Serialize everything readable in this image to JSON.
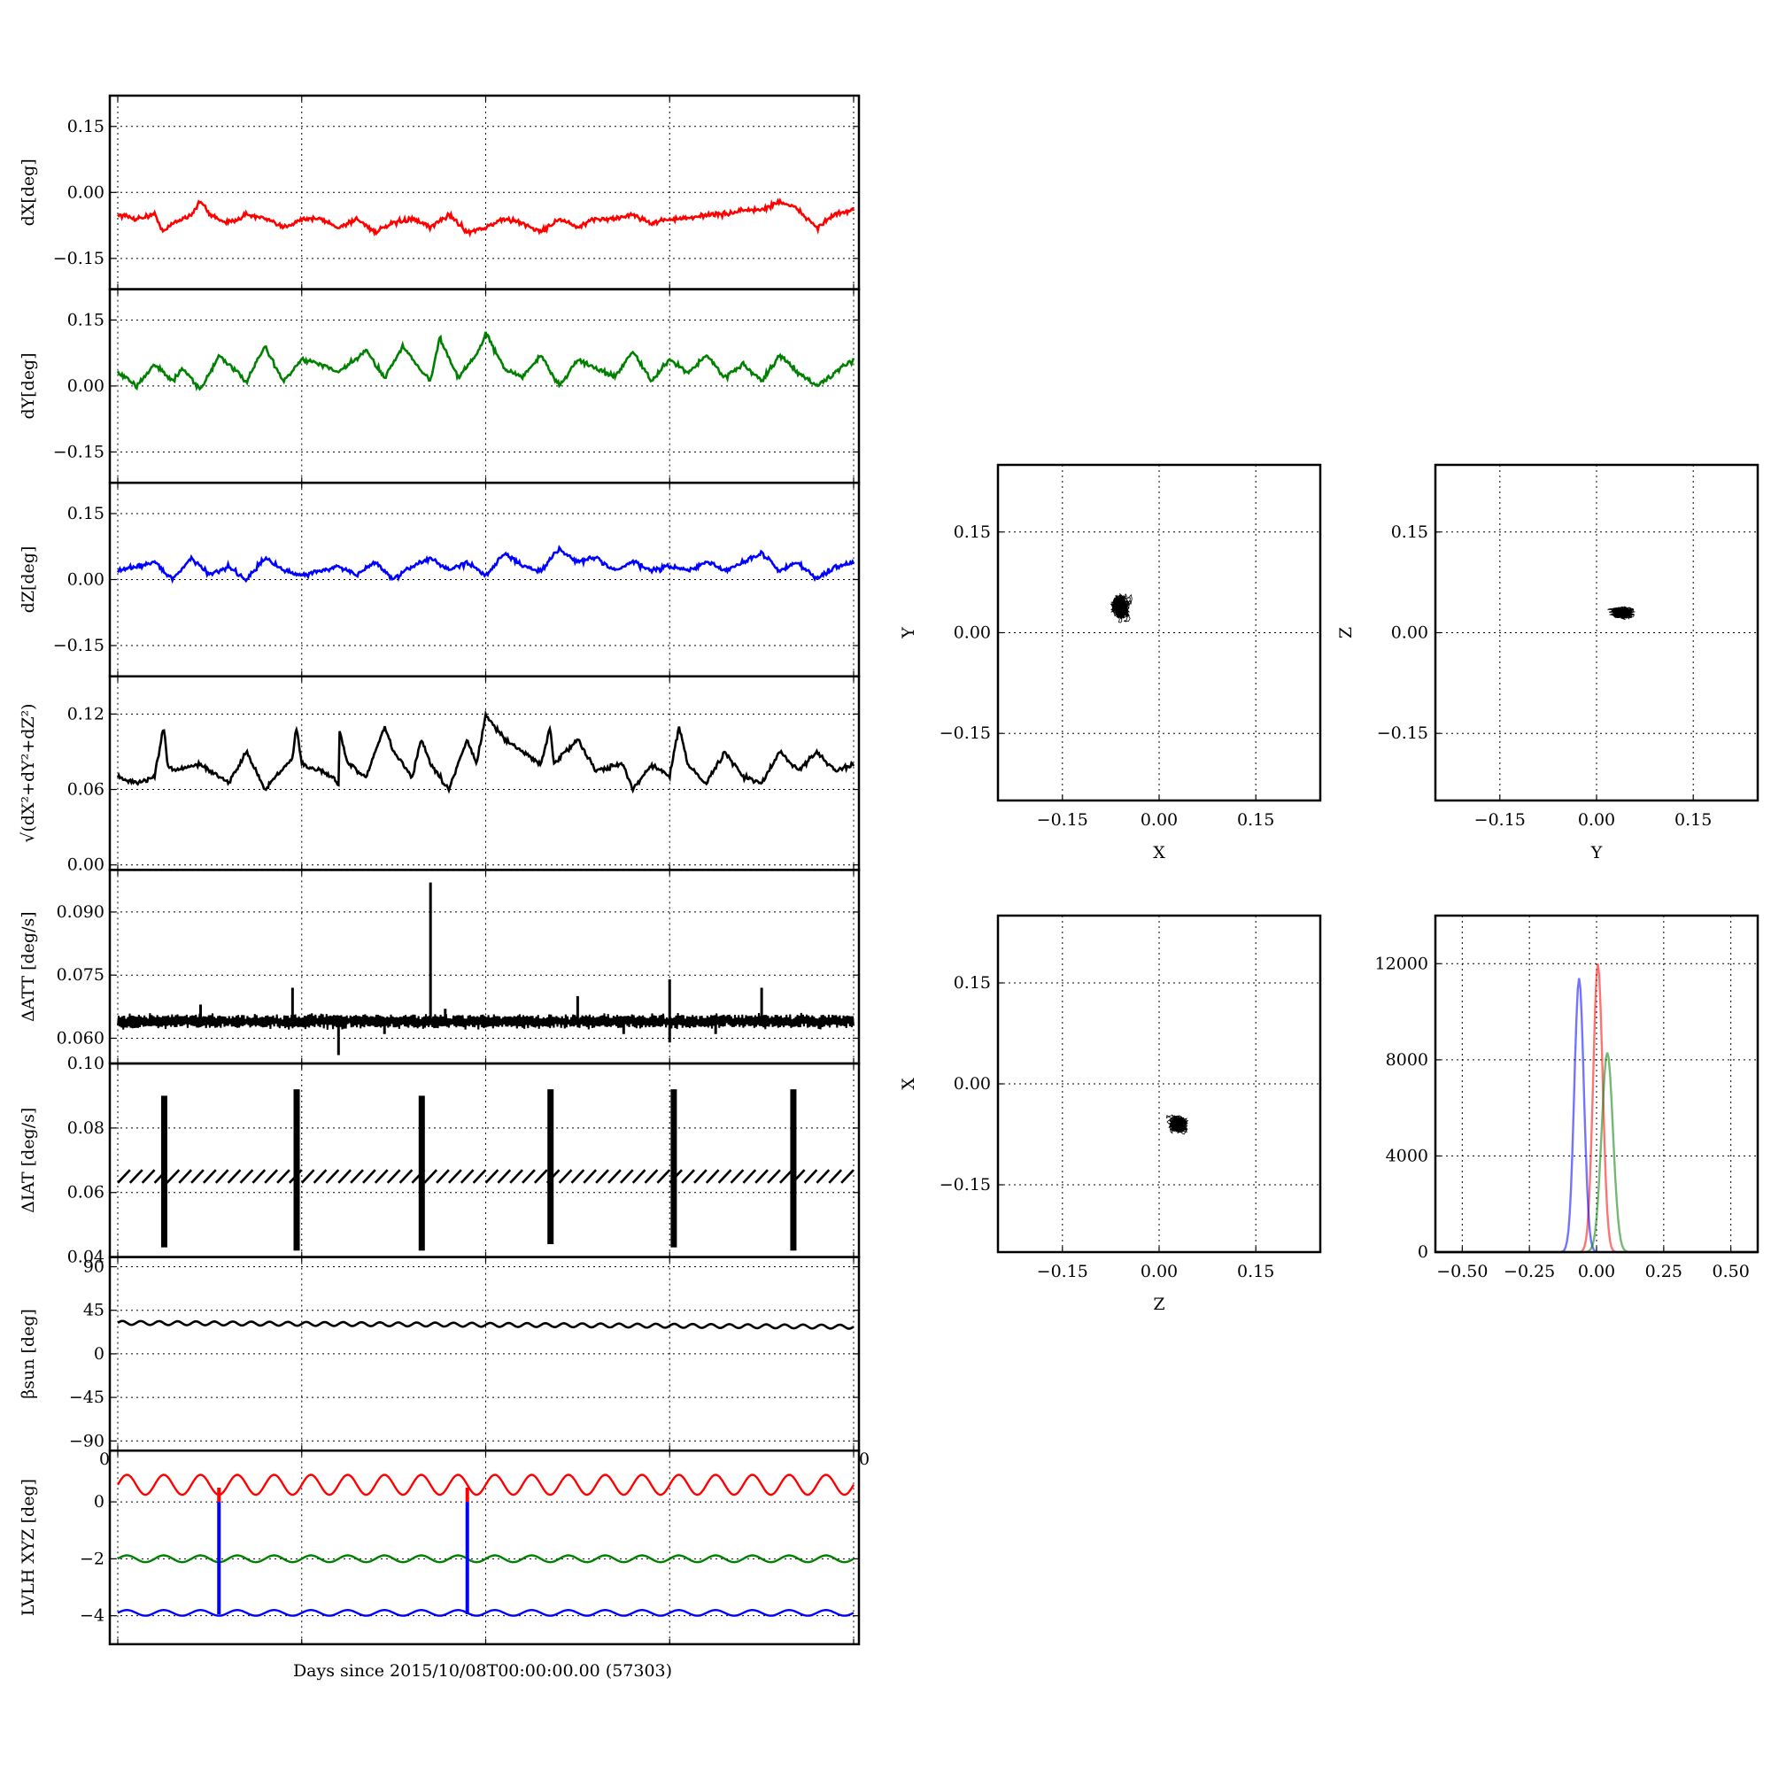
{
  "figure": {
    "xlabel": "Days since 2015/10/08T00:00:00.00 (57303)"
  },
  "chart_data": [
    {
      "id": "dX",
      "type": "line",
      "ylabel": "dX[deg]",
      "ylim": [
        -0.22,
        0.22
      ],
      "yticks": [
        "0.15",
        "0.00",
        "−0.15"
      ],
      "ytick_values": [
        0.15,
        0.0,
        -0.15
      ],
      "xlim": [
        0,
        4
      ],
      "color": "#ff0000",
      "series": [
        {
          "x": [
            0.0,
            0.1,
            0.2,
            0.25,
            0.3,
            0.4,
            0.45,
            0.5,
            0.6,
            0.7,
            0.8,
            0.9,
            1.0,
            1.1,
            1.2,
            1.3,
            1.4,
            1.5,
            1.6,
            1.7,
            1.8,
            1.9,
            2.0,
            2.1,
            2.2,
            2.3,
            2.4,
            2.5,
            2.6,
            2.7,
            2.8,
            2.9,
            3.0,
            3.1,
            3.2,
            3.3,
            3.4,
            3.5,
            3.6,
            3.7,
            3.8,
            3.9,
            4.0
          ],
          "y": [
            -0.05,
            -0.06,
            -0.05,
            -0.09,
            -0.07,
            -0.05,
            -0.02,
            -0.05,
            -0.07,
            -0.05,
            -0.06,
            -0.08,
            -0.06,
            -0.06,
            -0.08,
            -0.06,
            -0.09,
            -0.07,
            -0.06,
            -0.08,
            -0.05,
            -0.09,
            -0.08,
            -0.06,
            -0.07,
            -0.09,
            -0.06,
            -0.08,
            -0.06,
            -0.06,
            -0.05,
            -0.07,
            -0.06,
            -0.06,
            -0.05,
            -0.05,
            -0.04,
            -0.04,
            -0.02,
            -0.04,
            -0.08,
            -0.05,
            -0.04
          ]
        }
      ]
    },
    {
      "id": "dY",
      "type": "line",
      "ylabel": "dY[deg]",
      "ylim": [
        -0.22,
        0.22
      ],
      "yticks": [
        "0.15",
        "0.00",
        "−0.15"
      ],
      "ytick_values": [
        0.15,
        0.0,
        -0.15
      ],
      "xlim": [
        0,
        4
      ],
      "color": "#008000",
      "series": [
        {
          "x": [
            0.0,
            0.1,
            0.2,
            0.3,
            0.35,
            0.45,
            0.55,
            0.7,
            0.8,
            0.9,
            1.0,
            1.1,
            1.2,
            1.35,
            1.45,
            1.55,
            1.7,
            1.75,
            1.85,
            1.95,
            2.0,
            2.1,
            2.2,
            2.3,
            2.4,
            2.5,
            2.6,
            2.7,
            2.8,
            2.9,
            3.0,
            3.1,
            3.2,
            3.3,
            3.4,
            3.5,
            3.6,
            3.7,
            3.8,
            3.9,
            4.0
          ],
          "y": [
            0.03,
            0.0,
            0.05,
            0.01,
            0.04,
            -0.01,
            0.07,
            0.01,
            0.09,
            0.01,
            0.06,
            0.05,
            0.03,
            0.08,
            0.02,
            0.09,
            0.01,
            0.11,
            0.02,
            0.07,
            0.12,
            0.04,
            0.02,
            0.07,
            0.0,
            0.06,
            0.04,
            0.02,
            0.08,
            0.01,
            0.06,
            0.03,
            0.07,
            0.02,
            0.05,
            0.01,
            0.07,
            0.03,
            0.0,
            0.03,
            0.06
          ]
        }
      ]
    },
    {
      "id": "dZ",
      "type": "line",
      "ylabel": "dZ[deg]",
      "ylim": [
        -0.22,
        0.22
      ],
      "yticks": [
        "0.15",
        "0.00",
        "−0.15"
      ],
      "ytick_values": [
        0.15,
        0.0,
        -0.15
      ],
      "xlim": [
        0,
        4
      ],
      "color": "#0000ff",
      "series": [
        {
          "x": [
            0.0,
            0.1,
            0.2,
            0.3,
            0.4,
            0.5,
            0.6,
            0.7,
            0.8,
            0.9,
            1.0,
            1.1,
            1.2,
            1.3,
            1.4,
            1.5,
            1.6,
            1.7,
            1.8,
            1.9,
            2.0,
            2.1,
            2.2,
            2.3,
            2.4,
            2.5,
            2.6,
            2.7,
            2.8,
            2.9,
            3.0,
            3.1,
            3.2,
            3.3,
            3.4,
            3.5,
            3.6,
            3.7,
            3.8,
            3.9,
            4.0
          ],
          "y": [
            0.02,
            0.03,
            0.04,
            0.0,
            0.05,
            0.01,
            0.03,
            0.0,
            0.05,
            0.02,
            0.01,
            0.02,
            0.03,
            0.01,
            0.04,
            0.0,
            0.03,
            0.05,
            0.02,
            0.04,
            0.01,
            0.06,
            0.03,
            0.02,
            0.07,
            0.04,
            0.05,
            0.02,
            0.04,
            0.02,
            0.03,
            0.02,
            0.04,
            0.02,
            0.04,
            0.06,
            0.02,
            0.04,
            0.0,
            0.03,
            0.04
          ]
        }
      ]
    },
    {
      "id": "dR",
      "type": "line",
      "ylabel": "√(dX²+dY²+dZ²)",
      "ylim": [
        -0.004,
        0.15
      ],
      "yticks": [
        "0.12",
        "0.06",
        "0.00"
      ],
      "ytick_values": [
        0.12,
        0.06,
        0.0
      ],
      "xlim": [
        0,
        4
      ],
      "color": "#000000",
      "series": [
        {
          "x": [
            0.0,
            0.1,
            0.2,
            0.25,
            0.27,
            0.3,
            0.45,
            0.6,
            0.7,
            0.8,
            0.95,
            0.97,
            1.0,
            1.1,
            1.2,
            1.2,
            1.25,
            1.35,
            1.45,
            1.5,
            1.6,
            1.65,
            1.7,
            1.8,
            1.9,
            1.95,
            2.0,
            2.1,
            2.2,
            2.3,
            2.35,
            2.37,
            2.5,
            2.6,
            2.75,
            2.8,
            2.9,
            3.0,
            3.05,
            3.1,
            3.2,
            3.3,
            3.4,
            3.5,
            3.6,
            3.7,
            3.8,
            3.9,
            4.0
          ],
          "y": [
            0.07,
            0.065,
            0.07,
            0.11,
            0.08,
            0.075,
            0.08,
            0.065,
            0.09,
            0.06,
            0.085,
            0.11,
            0.08,
            0.075,
            0.065,
            0.11,
            0.08,
            0.07,
            0.11,
            0.09,
            0.07,
            0.1,
            0.08,
            0.06,
            0.1,
            0.08,
            0.12,
            0.1,
            0.09,
            0.08,
            0.11,
            0.08,
            0.1,
            0.075,
            0.08,
            0.06,
            0.08,
            0.07,
            0.11,
            0.08,
            0.065,
            0.09,
            0.07,
            0.065,
            0.09,
            0.075,
            0.09,
            0.075,
            0.08
          ]
        }
      ]
    },
    {
      "id": "dATT",
      "type": "line",
      "ylabel": "ΔATT [deg/s]",
      "ylim": [
        0.054,
        0.1
      ],
      "yticks": [
        "0.090",
        "0.075",
        "0.060"
      ],
      "ytick_values": [
        0.09,
        0.075,
        0.06
      ],
      "xlim": [
        0,
        4
      ],
      "color": "#000000",
      "baseline": 0.064,
      "spikes": [
        {
          "x": 0.45,
          "y": 0.068
        },
        {
          "x": 0.95,
          "y": 0.072
        },
        {
          "x": 1.2,
          "y": 0.056
        },
        {
          "x": 1.45,
          "y": 0.061
        },
        {
          "x": 1.7,
          "y": 0.097
        },
        {
          "x": 1.78,
          "y": 0.067
        },
        {
          "x": 2.05,
          "y": 0.063
        },
        {
          "x": 2.5,
          "y": 0.07
        },
        {
          "x": 2.75,
          "y": 0.061
        },
        {
          "x": 3.0,
          "y": 0.074
        },
        {
          "x": 3.0,
          "y": 0.059
        },
        {
          "x": 3.25,
          "y": 0.061
        },
        {
          "x": 3.5,
          "y": 0.072
        }
      ]
    },
    {
      "id": "dIAT",
      "type": "line",
      "ylabel": "ΔIAT [deg/s]",
      "ylim": [
        0.04,
        0.1
      ],
      "yticks": [
        "0.10",
        "0.08",
        "0.06",
        "0.04"
      ],
      "ytick_values": [
        0.1,
        0.08,
        0.06,
        0.04
      ],
      "xlim": [
        0,
        4
      ],
      "color": "#000000",
      "baseline": 0.065,
      "spikes": [
        {
          "x": 0.25,
          "lo": 0.043,
          "hi": 0.09
        },
        {
          "x": 0.97,
          "lo": 0.042,
          "hi": 0.092
        },
        {
          "x": 1.65,
          "lo": 0.042,
          "hi": 0.09
        },
        {
          "x": 2.35,
          "lo": 0.044,
          "hi": 0.092
        },
        {
          "x": 3.02,
          "lo": 0.043,
          "hi": 0.092
        },
        {
          "x": 3.67,
          "lo": 0.042,
          "hi": 0.092
        }
      ]
    },
    {
      "id": "beta",
      "type": "line",
      "ylabel": "βsun [deg]",
      "ylim": [
        -100,
        100
      ],
      "yticks": [
        "90",
        "45",
        "0",
        "−45",
        "−90"
      ],
      "ytick_values": [
        90,
        45,
        0,
        -45,
        -90
      ],
      "xlim": [
        0,
        4
      ],
      "color": "#000000",
      "series": [
        {
          "x": [
            0,
            4
          ],
          "y": [
            32,
            28
          ]
        }
      ],
      "wiggle_amplitude": 2
    },
    {
      "id": "lvlh",
      "type": "line",
      "ylabel": "LVLH XYZ [deg]",
      "ylim": [
        -5,
        1.8
      ],
      "yticks": [
        "0",
        "−2",
        "−4"
      ],
      "ytick_values": [
        0,
        -2,
        -4
      ],
      "xlim": [
        0,
        4
      ],
      "corner_label_left": "0",
      "corner_label_right": "0",
      "series": [
        {
          "color": "#ff0000",
          "mean": 0.6,
          "amp": 0.35
        },
        {
          "color": "#008000",
          "mean": -2.0,
          "amp": 0.12
        },
        {
          "color": "#0000ff",
          "mean": -3.9,
          "amp": 0.1
        }
      ],
      "drops": [
        {
          "x": 0.55
        },
        {
          "x": 1.9
        }
      ]
    },
    {
      "id": "scatterXY",
      "type": "scatter",
      "xlabel": "X",
      "ylabel": "Y",
      "xlim": [
        -0.25,
        0.25
      ],
      "ylim": [
        -0.25,
        0.25
      ],
      "xticks": [
        "−0.15",
        "0.00",
        "0.15"
      ],
      "yticks": [
        "0.15",
        "0.00",
        "−0.15"
      ],
      "center": [
        -0.06,
        0.04
      ],
      "spread": [
        0.025,
        0.035
      ]
    },
    {
      "id": "scatterYZ",
      "type": "scatter",
      "xlabel": "Y",
      "ylabel": "Z",
      "xlim": [
        -0.25,
        0.25
      ],
      "ylim": [
        -0.25,
        0.25
      ],
      "xticks": [
        "−0.15",
        "0.00",
        "0.15"
      ],
      "yticks": [
        "0.15",
        "0.00",
        "−0.15"
      ],
      "center": [
        0.04,
        0.03
      ],
      "spread": [
        0.035,
        0.015
      ]
    },
    {
      "id": "scatterZX",
      "type": "scatter",
      "xlabel": "Z",
      "ylabel": "X",
      "xlim": [
        -0.25,
        0.25
      ],
      "ylim": [
        -0.25,
        0.25
      ],
      "xticks": [
        "−0.15",
        "0.00",
        "0.15"
      ],
      "yticks": [
        "0.15",
        "0.00",
        "−0.15"
      ],
      "center": [
        0.03,
        -0.06
      ],
      "spread": [
        0.025,
        0.025
      ]
    },
    {
      "id": "histogram",
      "type": "line",
      "xlabel": "",
      "ylabel": "",
      "xlim": [
        -0.6,
        0.6
      ],
      "ylim": [
        0,
        14000
      ],
      "xticks": [
        "−0.50",
        "−0.25",
        "0.00",
        "0.25",
        "0.50"
      ],
      "xtick_values": [
        -0.5,
        -0.25,
        0.0,
        0.25,
        0.5
      ],
      "yticks": [
        "12000",
        "8000",
        "4000",
        "0"
      ],
      "ytick_values": [
        12000,
        8000,
        4000,
        0
      ],
      "series": [
        {
          "color": "#ff0000",
          "peak_x": 0.005,
          "peak_y": 12000,
          "width": 0.025
        },
        {
          "color": "#0000ff",
          "peak_x": -0.065,
          "peak_y": 11400,
          "width": 0.025
        },
        {
          "color": "#008000",
          "peak_x": 0.04,
          "peak_y": 8300,
          "width": 0.03
        }
      ]
    }
  ]
}
